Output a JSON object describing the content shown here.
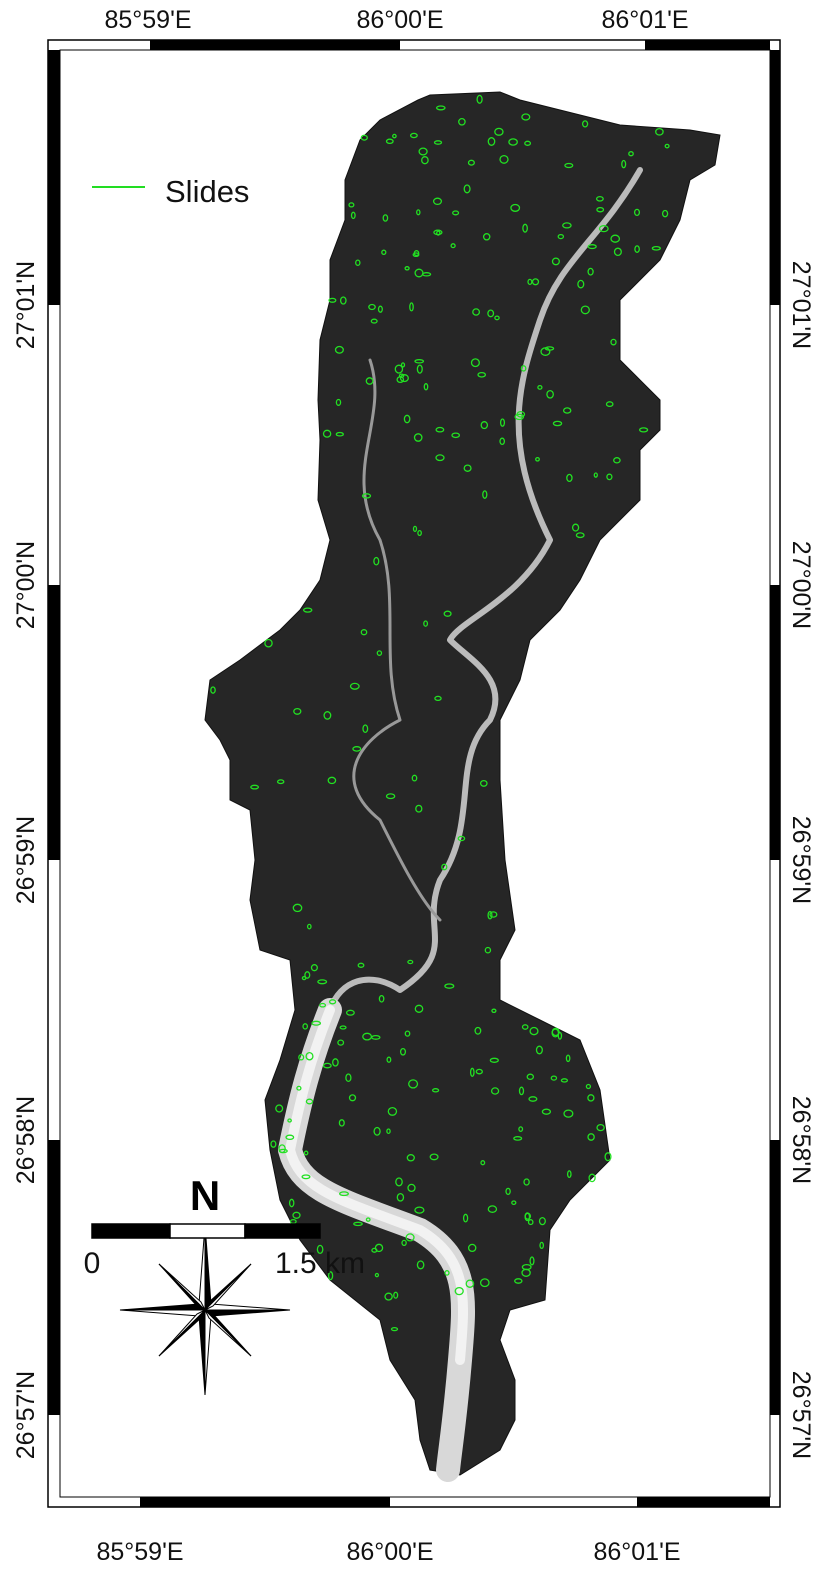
{
  "top_labels": [
    "85°59'E",
    "86°00'E",
    "86°01'E"
  ],
  "bottom_labels": [
    "85°59'E",
    "86°00'E",
    "86°01'E"
  ],
  "left_labels": [
    "27°01'N",
    "27°00'N",
    "26°59'N",
    "26°58'N",
    "26°57'N"
  ],
  "right_labels": [
    "27°01'N",
    "27°00'N",
    "26°59'N",
    "26°58'N",
    "26°57'N"
  ],
  "legend": {
    "label": "Slides"
  },
  "north_arrow": "N",
  "scale_bar": {
    "start": "0",
    "end": "1.5 km"
  }
}
